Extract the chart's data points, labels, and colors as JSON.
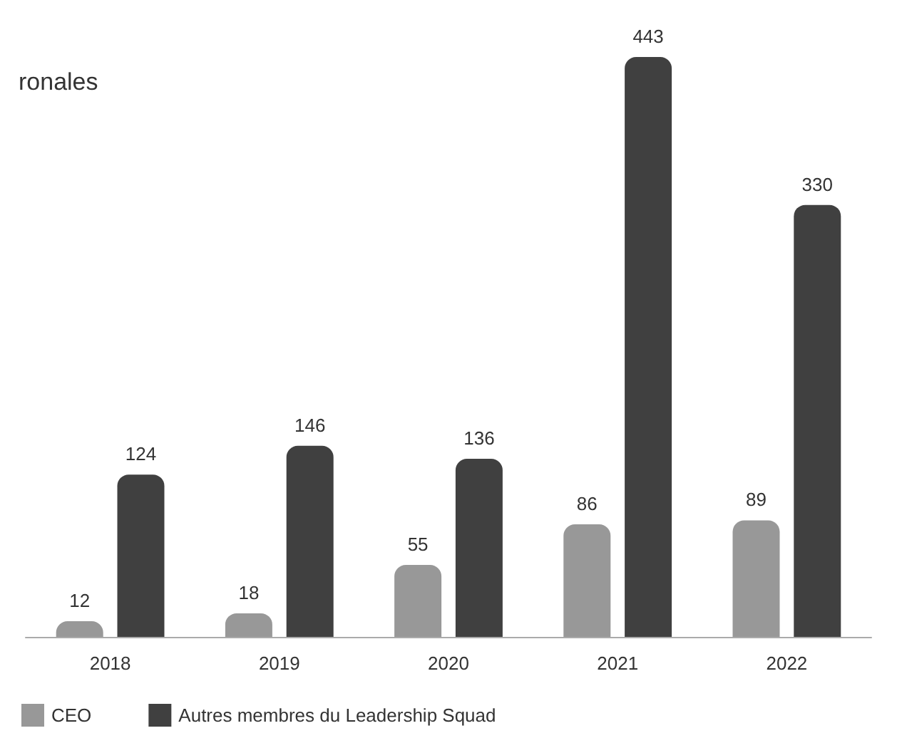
{
  "chart_data": {
    "type": "bar",
    "title": "ronales",
    "categories": [
      "2018",
      "2019",
      "2020",
      "2021",
      "2022"
    ],
    "series": [
      {
        "name": "CEO",
        "color": "#989898",
        "values": [
          12,
          18,
          55,
          86,
          89
        ]
      },
      {
        "name": "Autres membres du Leadership Squad",
        "color": "#404040",
        "values": [
          124,
          146,
          136,
          443,
          330
        ]
      }
    ],
    "data_labels": true,
    "legend": "bottom left"
  }
}
